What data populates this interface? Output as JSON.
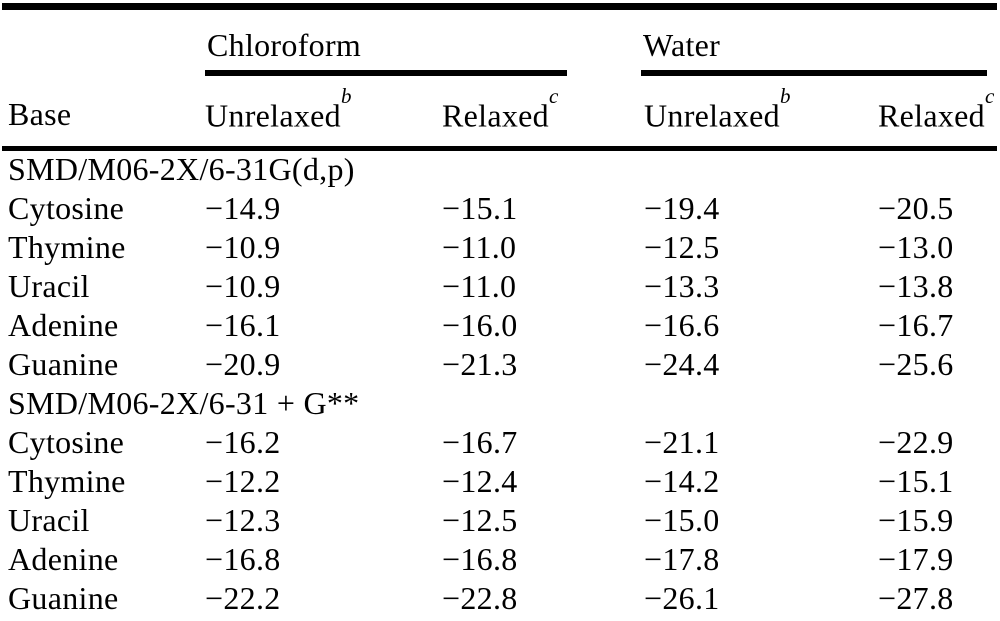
{
  "table": {
    "base_header": "Base",
    "groups": [
      {
        "label": "Chloroform"
      },
      {
        "label": "Water"
      }
    ],
    "sub_headers": [
      {
        "label": "Unrelaxed",
        "sup": "b"
      },
      {
        "label": "Relaxed",
        "sup": "c"
      },
      {
        "label": "Unrelaxed",
        "sup": "b"
      },
      {
        "label": "Relaxed",
        "sup": "c"
      }
    ],
    "sections": [
      {
        "label": "SMD/M06-2X/6-31G(d,p)",
        "rows": [
          {
            "base": "Cytosine",
            "values": [
              "−14.9",
              "−15.1",
              "−19.4",
              "−20.5"
            ]
          },
          {
            "base": "Thymine",
            "values": [
              "−10.9",
              "−11.0",
              "−12.5",
              "−13.0"
            ]
          },
          {
            "base": "Uracil",
            "values": [
              "−10.9",
              "−11.0",
              "−13.3",
              "−13.8"
            ]
          },
          {
            "base": "Adenine",
            "values": [
              "−16.1",
              "−16.0",
              "−16.6",
              "−16.7"
            ]
          },
          {
            "base": "Guanine",
            "values": [
              "−20.9",
              "−21.3",
              "−24.4",
              "−25.6"
            ]
          }
        ]
      },
      {
        "label": "SMD/M06-2X/6-31 + G**",
        "rows": [
          {
            "base": "Cytosine",
            "values": [
              "−16.2",
              "−16.7",
              "−21.1",
              "−22.9"
            ]
          },
          {
            "base": "Thymine",
            "values": [
              "−12.2",
              "−12.4",
              "−14.2",
              "−15.1"
            ]
          },
          {
            "base": "Uracil",
            "values": [
              "−12.3",
              "−12.5",
              "−15.0",
              "−15.9"
            ]
          },
          {
            "base": "Adenine",
            "values": [
              "−16.8",
              "−16.8",
              "−17.8",
              "−17.9"
            ]
          },
          {
            "base": "Guanine",
            "values": [
              "−22.2",
              "−22.8",
              "−26.1",
              "−27.8"
            ]
          }
        ]
      }
    ]
  }
}
